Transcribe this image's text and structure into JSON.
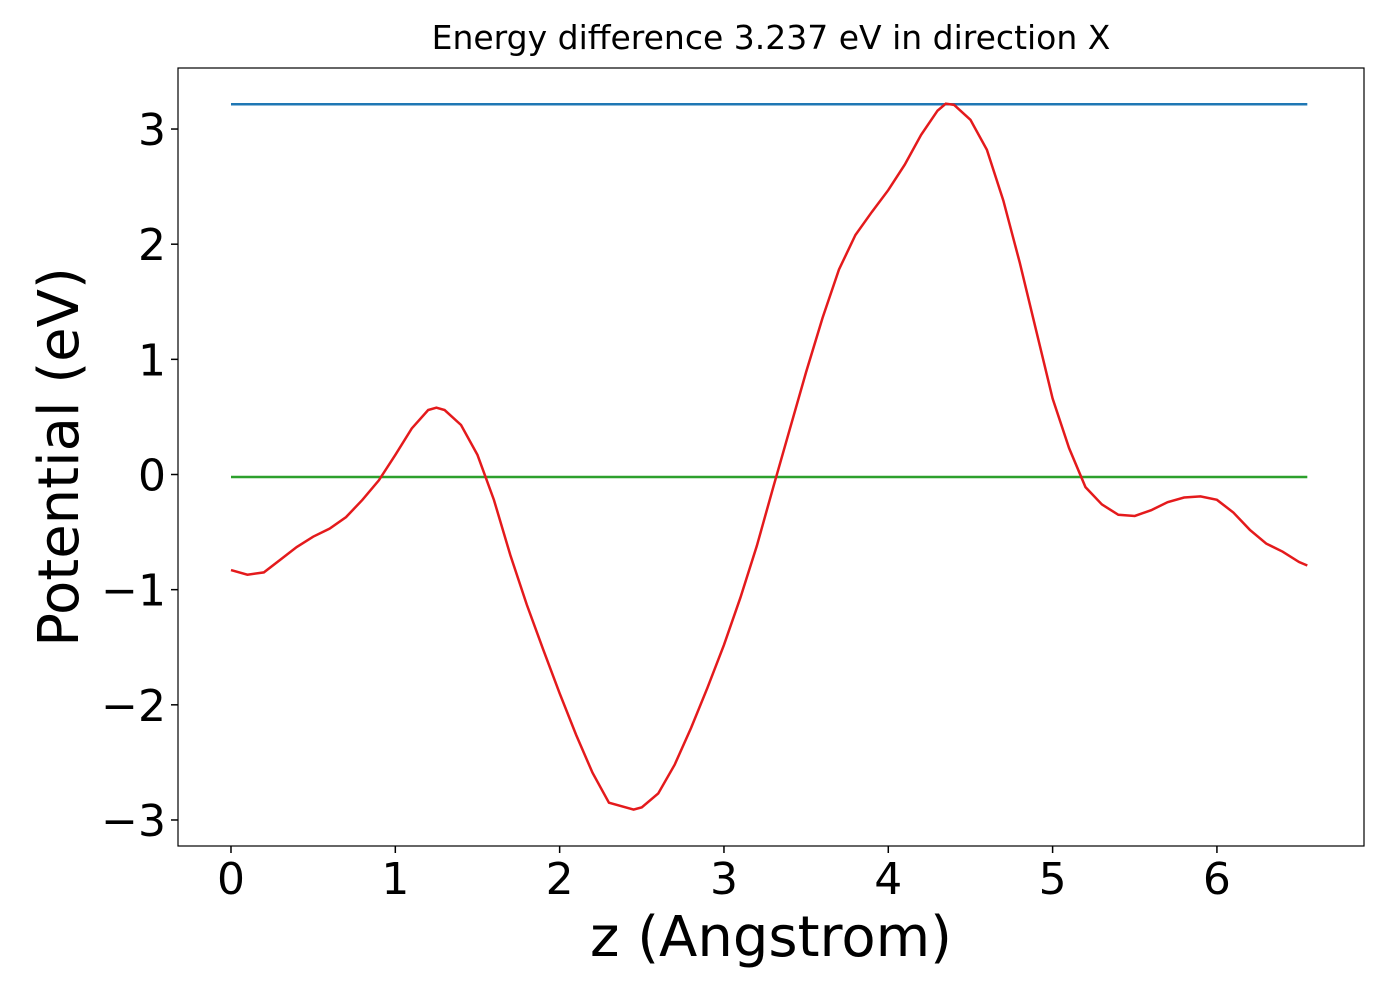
{
  "chart_data": {
    "type": "line",
    "title": "Energy difference 3.237 eV in direction X",
    "x_label": "z (Angstrom)",
    "y_label": "Potential (eV)",
    "xlim": [
      -0.3225,
      6.895
    ],
    "ylim": [
      -3.226,
      3.53
    ],
    "xticks": [
      0,
      1,
      2,
      3,
      4,
      5,
      6
    ],
    "yticks": [
      {
        "value": -3,
        "label": "−3"
      },
      {
        "value": -2,
        "label": "−2"
      },
      {
        "value": -1,
        "label": "−1"
      },
      0,
      1,
      2,
      3
    ],
    "series": [
      {
        "color": "#1f77b4",
        "x": [
          0,
          6.55
        ],
        "values": [
          3.215,
          3.215
        ]
      },
      {
        "color": "#2ca02c",
        "x": [
          0,
          6.55
        ],
        "values": [
          -0.022,
          -0.022
        ]
      },
      {
        "color": "#e41a1c",
        "x": [
          0,
          0.1,
          0.2,
          0.3,
          0.4,
          0.5,
          0.6,
          0.7,
          0.8,
          0.9,
          1.0,
          1.1,
          1.2,
          1.25,
          1.3,
          1.4,
          1.5,
          1.6,
          1.7,
          1.8,
          1.9,
          2.0,
          2.1,
          2.2,
          2.3,
          2.45,
          2.5,
          2.6,
          2.7,
          2.8,
          2.9,
          3.0,
          3.1,
          3.2,
          3.3,
          3.4,
          3.5,
          3.6,
          3.7,
          3.8,
          3.9,
          4.0,
          4.1,
          4.2,
          4.3,
          4.35,
          4.4,
          4.5,
          4.6,
          4.7,
          4.8,
          4.9,
          5.0,
          5.1,
          5.2,
          5.3,
          5.4,
          5.5,
          5.6,
          5.7,
          5.8,
          5.9,
          6.0,
          6.1,
          6.2,
          6.3,
          6.4,
          6.5,
          6.55
        ],
        "values": [
          -0.83,
          -0.87,
          -0.85,
          -0.74,
          -0.63,
          -0.54,
          -0.47,
          -0.37,
          -0.22,
          -0.05,
          0.17,
          0.4,
          0.56,
          0.58,
          0.56,
          0.43,
          0.17,
          -0.22,
          -0.7,
          -1.13,
          -1.52,
          -1.9,
          -2.26,
          -2.59,
          -2.85,
          -2.91,
          -2.89,
          -2.77,
          -2.52,
          -2.2,
          -1.85,
          -1.48,
          -1.07,
          -0.62,
          -0.11,
          0.39,
          0.89,
          1.36,
          1.78,
          2.08,
          2.28,
          2.47,
          2.69,
          2.95,
          3.16,
          3.22,
          3.21,
          3.08,
          2.82,
          2.38,
          1.84,
          1.25,
          0.66,
          0.23,
          -0.11,
          -0.26,
          -0.35,
          -0.36,
          -0.31,
          -0.24,
          -0.2,
          -0.19,
          -0.22,
          -0.33,
          -0.48,
          -0.6,
          -0.67,
          -0.76,
          -0.79
        ]
      }
    ]
  }
}
